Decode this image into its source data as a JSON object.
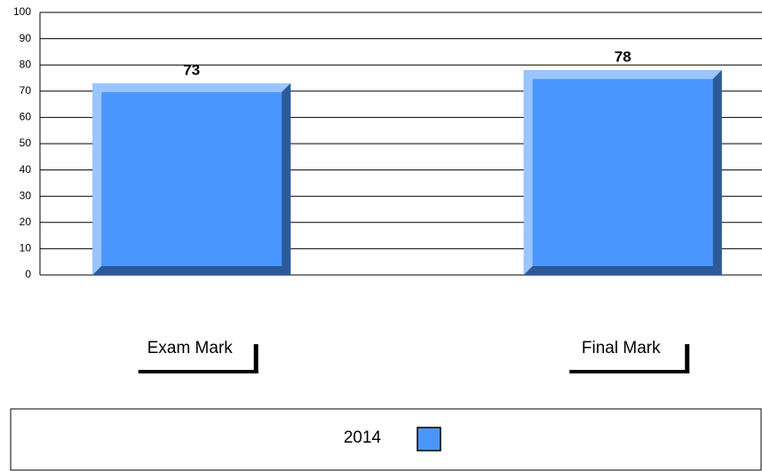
{
  "chart_data": {
    "type": "bar",
    "categories": [
      "Exam Mark",
      "Final Mark"
    ],
    "series": [
      {
        "name": "2014",
        "color": "#4a96ff",
        "values": [
          73,
          78
        ]
      }
    ],
    "ylim": [
      0,
      100
    ],
    "yticks": [
      0,
      10,
      20,
      30,
      40,
      50,
      60,
      70,
      80,
      90,
      100
    ],
    "grid": true
  }
}
